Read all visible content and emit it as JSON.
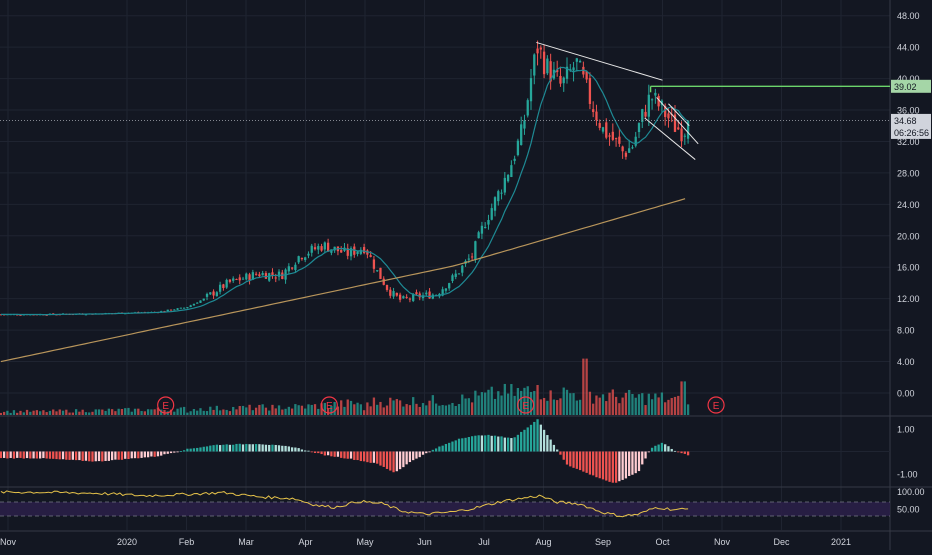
{
  "colors": {
    "background": "#131722",
    "grid": "#1f2431",
    "up": "#26a69a",
    "down": "#ef5350",
    "upVolume": "#26a69a",
    "downVolume": "#ef5350",
    "sma50": "#1e8a94",
    "sma200": "#b8955b",
    "rsi": "#e6c34a",
    "rsiBand": "#2a1f47",
    "trendline": "#e6e6e6",
    "resistance": "#6bd46b",
    "macdUpStrong": "#26a69a",
    "macdUpWeak": "#b2dfdb",
    "macdDownStrong": "#ef5350",
    "macdDownWeak": "#ffcdd2",
    "axisText": "#d1d4dc",
    "separator": "#363a45",
    "earnings": "#f23645"
  },
  "chart_data": [
    {
      "type": "candlestick",
      "pane": "price",
      "title": "",
      "y_ticks": [
        "48.00",
        "44.00",
        "40.00",
        "36.00",
        "32.00",
        "28.00",
        "24.00",
        "20.00",
        "16.00",
        "12.00",
        "8.00",
        "4.00",
        "0.00"
      ],
      "ylim": [
        -2.8,
        50
      ],
      "x_ticks": [
        "Nov",
        "2020",
        "Feb",
        "Mar",
        "Apr",
        "May",
        "Jun",
        "Jul",
        "Aug",
        "Sep",
        "Oct",
        "Nov",
        "Dec",
        "2021"
      ],
      "price_labels": {
        "resistance": "39.02",
        "last": "34.68",
        "countdown": "06:26:56"
      },
      "resistance_level": 39.02,
      "last_price": 34.68,
      "earnings_marker": "E",
      "earnings_months": [
        0.65,
        3.4,
        6.7,
        9.9
      ],
      "anchors": [
        [
          -1.5,
          10.0
        ],
        [
          -0.5,
          10.1
        ],
        [
          0.0,
          10.2
        ],
        [
          0.5,
          10.3
        ],
        [
          1.0,
          10.9
        ],
        [
          1.3,
          12.0
        ],
        [
          1.7,
          14.0
        ],
        [
          2.2,
          15.2
        ],
        [
          2.6,
          15.0
        ],
        [
          2.9,
          17.5
        ],
        [
          3.3,
          18.8
        ],
        [
          3.7,
          17.7
        ],
        [
          4.0,
          18.6
        ],
        [
          4.2,
          15.5
        ],
        [
          4.4,
          13.0
        ],
        [
          4.6,
          11.8
        ],
        [
          4.9,
          12.3
        ],
        [
          5.2,
          12.6
        ],
        [
          5.5,
          14.8
        ],
        [
          5.8,
          17.5
        ],
        [
          6.0,
          21.5
        ],
        [
          6.25,
          25.5
        ],
        [
          6.45,
          29.0
        ],
        [
          6.65,
          33.5
        ],
        [
          6.8,
          40.5
        ],
        [
          6.9,
          44.0
        ],
        [
          7.05,
          41.5
        ],
        [
          7.3,
          39.0
        ],
        [
          7.55,
          42.0
        ],
        [
          7.8,
          37.0
        ],
        [
          8.0,
          33.5
        ],
        [
          8.2,
          32.0
        ],
        [
          8.35,
          30.5
        ],
        [
          8.5,
          31.5
        ],
        [
          8.65,
          35.0
        ],
        [
          8.8,
          37.8
        ],
        [
          9.0,
          36.0
        ],
        [
          9.2,
          34.0
        ],
        [
          9.35,
          33.2
        ],
        [
          9.45,
          34.68
        ]
      ],
      "volume_anchors": [
        [
          -1.5,
          0.15
        ],
        [
          1.0,
          0.25
        ],
        [
          3.0,
          0.35
        ],
        [
          4.2,
          0.55
        ],
        [
          5.5,
          0.6
        ],
        [
          6.3,
          0.9
        ],
        [
          6.9,
          1.0
        ],
        [
          7.5,
          0.9
        ],
        [
          8.3,
          0.75
        ],
        [
          9.0,
          0.7
        ],
        [
          9.45,
          0.5
        ]
      ],
      "volume_spikes": [
        {
          "month": 1.0,
          "h": 0.08
        },
        {
          "month": 2.5,
          "h": 0.22
        },
        {
          "month": 4.0,
          "h": 0.16
        },
        {
          "month": 6.3,
          "h": 0.65
        },
        {
          "month": 6.55,
          "h": 0.9
        },
        {
          "month": 6.9,
          "h": 1.0
        },
        {
          "month": 7.1,
          "h": 0.82
        },
        {
          "month": 7.7,
          "h": 1.88
        },
        {
          "month": 8.5,
          "h": 0.7
        },
        {
          "month": 9.35,
          "h": 1.12
        }
      ]
    },
    {
      "type": "bar",
      "pane": "macd",
      "y_ticks": [
        "1.00",
        "-1.00"
      ],
      "ylim": [
        -1.55,
        1.55
      ],
      "anchors": [
        [
          -1.5,
          -0.3
        ],
        [
          -0.5,
          -0.45
        ],
        [
          0.5,
          -0.22
        ],
        [
          1.0,
          0.1
        ],
        [
          1.5,
          0.3
        ],
        [
          2.2,
          0.35
        ],
        [
          2.8,
          0.2
        ],
        [
          3.3,
          -0.15
        ],
        [
          3.8,
          -0.35
        ],
        [
          4.2,
          -0.55
        ],
        [
          4.5,
          -0.95
        ],
        [
          4.8,
          -0.4
        ],
        [
          5.2,
          0.15
        ],
        [
          5.6,
          0.6
        ],
        [
          6.0,
          0.75
        ],
        [
          6.5,
          0.6
        ],
        [
          6.9,
          1.45
        ],
        [
          7.1,
          0.6
        ],
        [
          7.4,
          -0.6
        ],
        [
          7.8,
          -1.05
        ],
        [
          8.2,
          -1.45
        ],
        [
          8.6,
          -0.9
        ],
        [
          8.8,
          0.15
        ],
        [
          9.0,
          0.4
        ],
        [
          9.2,
          0.05
        ],
        [
          9.45,
          -0.2
        ]
      ]
    },
    {
      "type": "line",
      "pane": "rsi",
      "series": [
        {
          "name": "",
          "values": []
        }
      ],
      "y_ticks": [
        "100.00",
        "50.00"
      ],
      "ylim": [
        -10,
        110
      ],
      "band": [
        30,
        70
      ],
      "anchors": [
        [
          -1.5,
          98
        ],
        [
          -0.5,
          95
        ],
        [
          0.3,
          88
        ],
        [
          1.0,
          92
        ],
        [
          1.6,
          97
        ],
        [
          2.2,
          85
        ],
        [
          2.8,
          80
        ],
        [
          3.2,
          60
        ],
        [
          3.5,
          55
        ],
        [
          3.9,
          72
        ],
        [
          4.3,
          65
        ],
        [
          4.6,
          45
        ],
        [
          5.0,
          35
        ],
        [
          5.5,
          42
        ],
        [
          5.9,
          55
        ],
        [
          6.3,
          72
        ],
        [
          6.7,
          82
        ],
        [
          6.95,
          88
        ],
        [
          7.2,
          70
        ],
        [
          7.6,
          65
        ],
        [
          8.0,
          40
        ],
        [
          8.3,
          30
        ],
        [
          8.6,
          35
        ],
        [
          8.9,
          55
        ],
        [
          9.2,
          48
        ],
        [
          9.45,
          50
        ]
      ]
    }
  ]
}
